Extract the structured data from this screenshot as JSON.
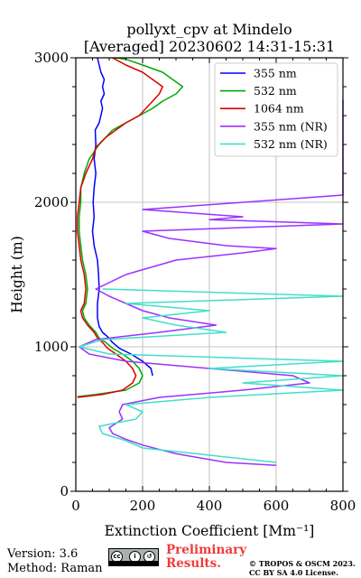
{
  "chart_data": {
    "type": "line",
    "title": "pollyxt_cpv at Mindelo",
    "subtitle": "[Averaged] 20230602 14:31-15:31",
    "xlabel": "Extinction Coefficient [Mm⁻¹]",
    "ylabel": "Height (m)",
    "xlim": [
      0,
      800
    ],
    "ylim": [
      0,
      3000
    ],
    "xticks": [
      0,
      200,
      400,
      600,
      800
    ],
    "yticks": [
      0,
      1000,
      2000,
      3000
    ],
    "grid": true,
    "legend_position": "top-right",
    "series": [
      {
        "name": "355 nm",
        "color": "#0000ff",
        "points": [
          [
            230,
            800
          ],
          [
            225,
            850
          ],
          [
            200,
            900
          ],
          [
            165,
            950
          ],
          [
            130,
            990
          ],
          [
            110,
            1030
          ],
          [
            95,
            1070
          ],
          [
            80,
            1100
          ],
          [
            70,
            1140
          ],
          [
            65,
            1200
          ],
          [
            65,
            1300
          ],
          [
            70,
            1400
          ],
          [
            68,
            1500
          ],
          [
            65,
            1600
          ],
          [
            55,
            1700
          ],
          [
            50,
            1800
          ],
          [
            55,
            1900
          ],
          [
            52,
            2000
          ],
          [
            55,
            2100
          ],
          [
            60,
            2200
          ],
          [
            55,
            2300
          ],
          [
            60,
            2400
          ],
          [
            58,
            2500
          ],
          [
            70,
            2550
          ],
          [
            75,
            2600
          ],
          [
            80,
            2650
          ],
          [
            75,
            2700
          ],
          [
            85,
            2750
          ],
          [
            80,
            2800
          ],
          [
            85,
            2850
          ],
          [
            75,
            2900
          ],
          [
            70,
            2950
          ],
          [
            65,
            3000
          ]
        ]
      },
      {
        "name": "532 nm",
        "color": "#00aa00",
        "points": [
          [
            5,
            655
          ],
          [
            60,
            670
          ],
          [
            150,
            700
          ],
          [
            190,
            750
          ],
          [
            200,
            800
          ],
          [
            190,
            850
          ],
          [
            170,
            900
          ],
          [
            140,
            950
          ],
          [
            110,
            990
          ],
          [
            90,
            1030
          ],
          [
            70,
            1060
          ],
          [
            60,
            1100
          ],
          [
            40,
            1150
          ],
          [
            25,
            1200
          ],
          [
            20,
            1250
          ],
          [
            30,
            1300
          ],
          [
            35,
            1400
          ],
          [
            30,
            1500
          ],
          [
            20,
            1600
          ],
          [
            15,
            1700
          ],
          [
            10,
            1800
          ],
          [
            10,
            1900
          ],
          [
            15,
            2000
          ],
          [
            15,
            2100
          ],
          [
            25,
            2200
          ],
          [
            40,
            2300
          ],
          [
            70,
            2400
          ],
          [
            110,
            2500
          ],
          [
            150,
            2550
          ],
          [
            190,
            2600
          ],
          [
            230,
            2650
          ],
          [
            260,
            2700
          ],
          [
            300,
            2750
          ],
          [
            320,
            2800
          ],
          [
            290,
            2850
          ],
          [
            260,
            2900
          ],
          [
            200,
            2950
          ],
          [
            150,
            2990
          ],
          [
            120,
            3000
          ]
        ]
      },
      {
        "name": "1064 nm",
        "color": "#dd0000",
        "points": [
          [
            5,
            650
          ],
          [
            80,
            670
          ],
          [
            140,
            700
          ],
          [
            170,
            750
          ],
          [
            180,
            800
          ],
          [
            170,
            850
          ],
          [
            150,
            900
          ],
          [
            120,
            950
          ],
          [
            95,
            990
          ],
          [
            80,
            1030
          ],
          [
            65,
            1060
          ],
          [
            55,
            1100
          ],
          [
            35,
            1150
          ],
          [
            20,
            1200
          ],
          [
            15,
            1250
          ],
          [
            25,
            1300
          ],
          [
            30,
            1400
          ],
          [
            25,
            1500
          ],
          [
            15,
            1600
          ],
          [
            10,
            1700
          ],
          [
            5,
            1800
          ],
          [
            5,
            1900
          ],
          [
            10,
            2000
          ],
          [
            15,
            2100
          ],
          [
            30,
            2200
          ],
          [
            50,
            2300
          ],
          [
            60,
            2380
          ],
          [
            90,
            2450
          ],
          [
            120,
            2500
          ],
          [
            150,
            2550
          ],
          [
            190,
            2600
          ],
          [
            230,
            2700
          ],
          [
            250,
            2750
          ],
          [
            260,
            2800
          ],
          [
            230,
            2850
          ],
          [
            200,
            2900
          ],
          [
            150,
            2950
          ],
          [
            110,
            3000
          ]
        ]
      },
      {
        "name": "355 nm (NR)",
        "color": "#9933ff",
        "points": [
          [
            600,
            180
          ],
          [
            450,
            200
          ],
          [
            300,
            260
          ],
          [
            200,
            320
          ],
          [
            150,
            360
          ],
          [
            110,
            400
          ],
          [
            100,
            440
          ],
          [
            140,
            500
          ],
          [
            130,
            550
          ],
          [
            140,
            600
          ],
          [
            250,
            650
          ],
          [
            500,
            700
          ],
          [
            700,
            750
          ],
          [
            650,
            800
          ],
          [
            400,
            850
          ],
          [
            150,
            900
          ],
          [
            40,
            950
          ],
          [
            10,
            1000
          ],
          [
            60,
            1050
          ],
          [
            250,
            1100
          ],
          [
            420,
            1150
          ],
          [
            280,
            1200
          ],
          [
            200,
            1250
          ],
          [
            150,
            1300
          ],
          [
            100,
            1350
          ],
          [
            60,
            1400
          ],
          [
            150,
            1500
          ],
          [
            300,
            1600
          ],
          [
            500,
            1650
          ],
          [
            600,
            1680
          ],
          [
            450,
            1700
          ],
          [
            280,
            1750
          ],
          [
            200,
            1800
          ],
          [
            800,
            1850
          ],
          [
            400,
            1880
          ],
          [
            500,
            1900
          ],
          [
            200,
            1950
          ],
          [
            800,
            2050
          ],
          [
            800,
            2100
          ],
          [
            800,
            2190
          ],
          [
            800,
            2220
          ],
          [
            800,
            2700
          ],
          [
            800,
            2710
          ]
        ]
      },
      {
        "name": "532 nm (NR)",
        "color": "#40e0c8",
        "points": [
          [
            600,
            200
          ],
          [
            400,
            250
          ],
          [
            200,
            300
          ],
          [
            150,
            350
          ],
          [
            80,
            400
          ],
          [
            70,
            450
          ],
          [
            180,
            500
          ],
          [
            200,
            550
          ],
          [
            150,
            600
          ],
          [
            400,
            650
          ],
          [
            800,
            700
          ],
          [
            500,
            750
          ],
          [
            800,
            800
          ],
          [
            400,
            850
          ],
          [
            800,
            900
          ],
          [
            100,
            950
          ],
          [
            10,
            1000
          ],
          [
            80,
            1050
          ],
          [
            450,
            1100
          ],
          [
            300,
            1150
          ],
          [
            200,
            1200
          ],
          [
            400,
            1250
          ],
          [
            150,
            1300
          ],
          [
            800,
            1350
          ],
          [
            80,
            1400
          ]
        ]
      }
    ]
  },
  "footer": {
    "version": "Version: 3.6",
    "method": "Method: Raman",
    "preliminary_line1": "Preliminary",
    "preliminary_line2": "Results.",
    "copyright": "© TROPOS & OSCM 2023.",
    "license": "CC BY SA 4.0 License."
  }
}
